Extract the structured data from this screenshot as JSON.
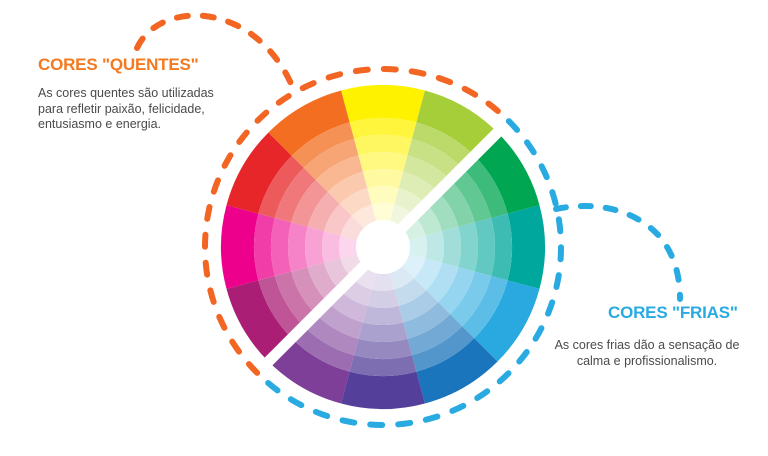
{
  "palette": {
    "background": "#FFFFFF",
    "warm_accent": "#F26522",
    "warm_title_color": "#F4791F",
    "cool_accent": "#29ABE2",
    "text_gray": "#4A4A4A"
  },
  "warm_section": {
    "title": "CORES \"QUENTES\"",
    "description": "As cores quentes são utilizadas\npara refletir paixão, felicidade,\nentusiasmo e energia."
  },
  "cool_section": {
    "title": "CORES \"FRIAS\"",
    "description": "As cores frias dão a sensação de\ncalma e profissionalismo."
  },
  "chart_data": {
    "type": "pie",
    "subtype": "color-wheel",
    "title": "",
    "segment_angle_deg": 30,
    "first_segment_center_deg": 0,
    "rings": 7,
    "ring_color_fractions": [
      1.0,
      0.76,
      0.62,
      0.49,
      0.37,
      0.26,
      0.16
    ],
    "divider_angles_deg": [
      45,
      225
    ],
    "segments_clockwise_from_top": [
      {
        "name": "amarelo",
        "hex": "#FFF200",
        "group": "quente"
      },
      {
        "name": "amarelo-verde",
        "hex": "#A6CE39",
        "group": "quente"
      },
      {
        "name": "verde",
        "hex": "#00A651",
        "group": "fria"
      },
      {
        "name": "verde-azulado",
        "hex": "#00A79C",
        "group": "fria"
      },
      {
        "name": "ciano",
        "hex": "#29A9E0",
        "group": "fria"
      },
      {
        "name": "azul",
        "hex": "#1B75BC",
        "group": "fria"
      },
      {
        "name": "azul-violeta",
        "hex": "#54409A",
        "group": "fria"
      },
      {
        "name": "violeta",
        "hex": "#7E3F98",
        "group": "fria"
      },
      {
        "name": "vermelho-violeta",
        "hex": "#AB1E75",
        "group": "quente"
      },
      {
        "name": "magenta",
        "hex": "#EC008C",
        "group": "quente"
      },
      {
        "name": "vermelho",
        "hex": "#E62629",
        "group": "quente"
      },
      {
        "name": "laranja",
        "hex": "#F36E21",
        "group": "quente"
      }
    ],
    "warm_arc": {
      "color": "#F26522",
      "from_deg": 225,
      "to_deg": 45,
      "side": "left-top"
    },
    "cool_arc": {
      "color": "#29ABE2",
      "from_deg": 45,
      "to_deg": 225,
      "side": "right-bottom"
    }
  }
}
